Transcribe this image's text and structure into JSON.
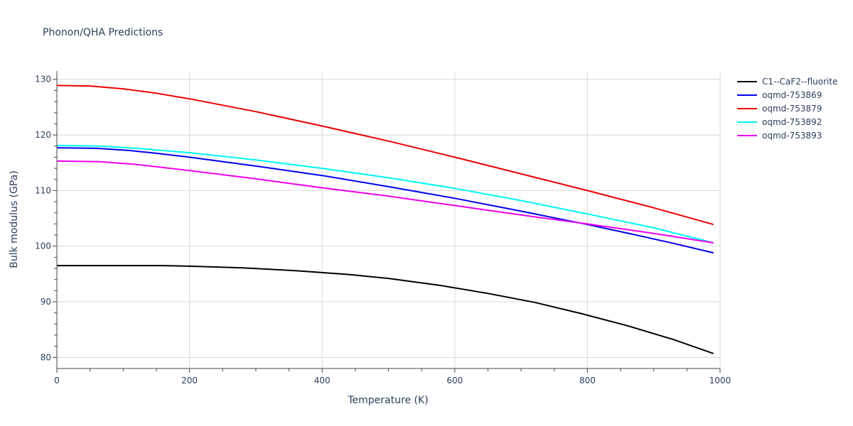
{
  "chart_data": {
    "type": "line",
    "title": "Phonon/QHA Predictions",
    "xlabel": "Temperature (K)",
    "ylabel": "Bulk modulus (GPa)",
    "xlim": [
      0,
      1000
    ],
    "ylim": [
      78,
      131.5
    ],
    "xticks": [
      0,
      200,
      400,
      600,
      800,
      1000
    ],
    "yticks": [
      80,
      90,
      100,
      110,
      120,
      130
    ],
    "grid": true,
    "legend_position": "top-right",
    "series": [
      {
        "name": "C1--CaF2--fluorite",
        "color": "#000000",
        "x": [
          0,
          50,
          100,
          160,
          200,
          280,
          360,
          440,
          500,
          580,
          650,
          720,
          790,
          860,
          930,
          990
        ],
        "y": [
          96.5,
          96.5,
          96.5,
          96.5,
          96.4,
          96.1,
          95.6,
          94.9,
          94.2,
          92.9,
          91.5,
          89.9,
          87.9,
          85.7,
          83.2,
          80.7
        ]
      },
      {
        "name": "oqmd-753869",
        "color": "#0000ee",
        "x": [
          0,
          60,
          110,
          150,
          200,
          300,
          400,
          500,
          600,
          700,
          800,
          870,
          930,
          990
        ],
        "y": [
          117.7,
          117.6,
          117.2,
          116.7,
          116.0,
          114.4,
          112.7,
          110.7,
          108.6,
          106.3,
          103.9,
          102.1,
          100.5,
          98.8
        ]
      },
      {
        "name": "oqmd-753879",
        "color": "#ee0000",
        "x": [
          0,
          50,
          100,
          150,
          200,
          300,
          400,
          500,
          600,
          700,
          800,
          900,
          990
        ],
        "y": [
          128.9,
          128.8,
          128.3,
          127.5,
          126.5,
          124.2,
          121.6,
          118.9,
          116.0,
          113.0,
          110.0,
          106.9,
          103.9
        ]
      },
      {
        "name": "oqmd-753892",
        "color": "#00f5f5",
        "x": [
          0,
          65,
          120,
          200,
          300,
          400,
          500,
          600,
          700,
          800,
          900,
          990
        ],
        "y": [
          118.1,
          118.0,
          117.6,
          116.8,
          115.5,
          114.0,
          112.3,
          110.4,
          108.2,
          105.8,
          103.3,
          100.6
        ]
      },
      {
        "name": "oqmd-753893",
        "color": "#ee00ee",
        "x": [
          0,
          65,
          120,
          200,
          300,
          400,
          500,
          600,
          700,
          800,
          900,
          990
        ],
        "y": [
          115.3,
          115.2,
          114.7,
          113.6,
          112.1,
          110.5,
          109.0,
          107.3,
          105.6,
          104.0,
          102.3,
          100.6
        ]
      }
    ]
  }
}
